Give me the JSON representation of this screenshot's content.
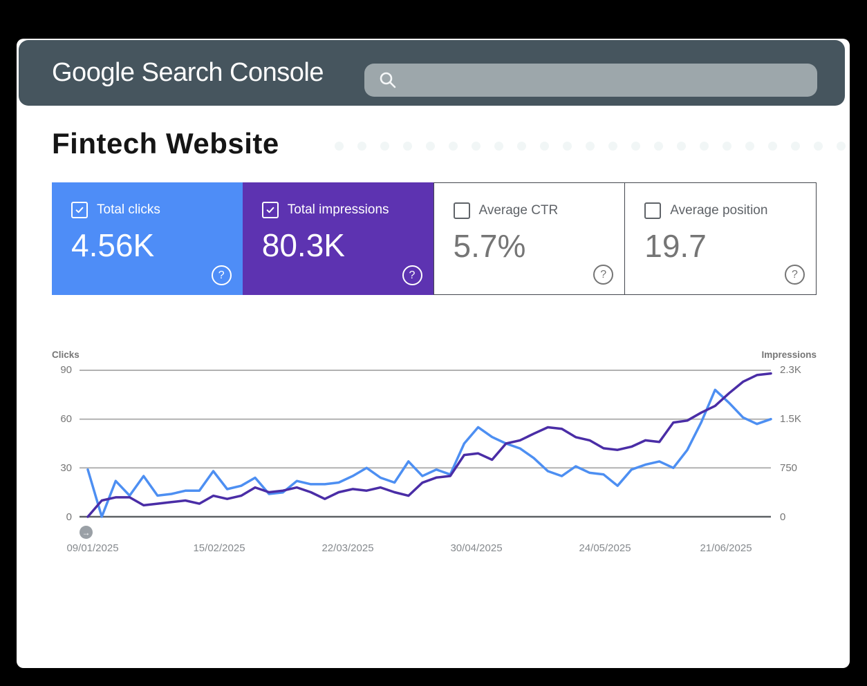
{
  "header": {
    "logo_text": "Google Search Console",
    "bg_color": "#46555e",
    "search": {
      "value": "",
      "placeholder": "",
      "bar_color": "#9da7ab"
    }
  },
  "page": {
    "title": "Fintech Website"
  },
  "icons": {
    "help_glyph": "?",
    "arrow_glyph": "→"
  },
  "metric_cards": [
    {
      "label": "Total clicks",
      "value": "4.56K",
      "checked": true,
      "bg": "#4e8df7",
      "text": "#ffffff"
    },
    {
      "label": "Total impressions",
      "value": "80.3K",
      "checked": true,
      "bg": "#5d33b1",
      "text": "#ffffff"
    },
    {
      "label": "Average CTR",
      "value": "5.7%",
      "checked": false,
      "bg": "#ffffff",
      "text": "#757575"
    },
    {
      "label": "Average position",
      "value": "19.7",
      "checked": false,
      "bg": "#ffffff",
      "text": "#757575"
    }
  ],
  "chart_data": {
    "type": "line",
    "grid": true,
    "left_axis": {
      "label": "Clicks",
      "ticks": [
        "90",
        "60",
        "30",
        "0"
      ],
      "range": [
        0,
        90
      ]
    },
    "right_axis": {
      "label": "Impressions",
      "ticks": [
        "2.3K",
        "1.5K",
        "750",
        "0"
      ],
      "range": [
        0,
        2300
      ]
    },
    "x_tick_labels": [
      "09/01/2025",
      "15/02/2025",
      "22/03/2025",
      "30/04/2025",
      "24/05/2025",
      "21/06/2025"
    ],
    "series": [
      {
        "name": "Clicks",
        "axis": "left",
        "color": "#4d8ff2",
        "values": [
          29,
          0,
          22,
          13,
          25,
          13,
          14,
          16,
          16,
          28,
          17,
          19,
          24,
          14,
          15,
          22,
          20,
          20,
          21,
          25,
          30,
          24,
          21,
          34,
          25,
          29,
          26,
          45,
          55,
          49,
          45,
          42,
          36,
          28,
          25,
          31,
          27,
          26,
          19,
          29,
          32,
          34,
          30,
          41,
          58,
          78,
          70,
          61,
          57,
          60
        ]
      },
      {
        "name": "Impressions",
        "axis": "right",
        "color": "#4a2da6",
        "values": [
          0,
          255,
          305,
          305,
          180,
          205,
          230,
          255,
          205,
          330,
          280,
          330,
          460,
          385,
          410,
          460,
          385,
          280,
          385,
          435,
          410,
          460,
          385,
          330,
          535,
          615,
          640,
          970,
          995,
          895,
          1150,
          1200,
          1305,
          1405,
          1380,
          1250,
          1200,
          1075,
          1050,
          1100,
          1200,
          1175,
          1480,
          1510,
          1635,
          1740,
          1940,
          2120,
          2225,
          2250
        ]
      }
    ]
  }
}
